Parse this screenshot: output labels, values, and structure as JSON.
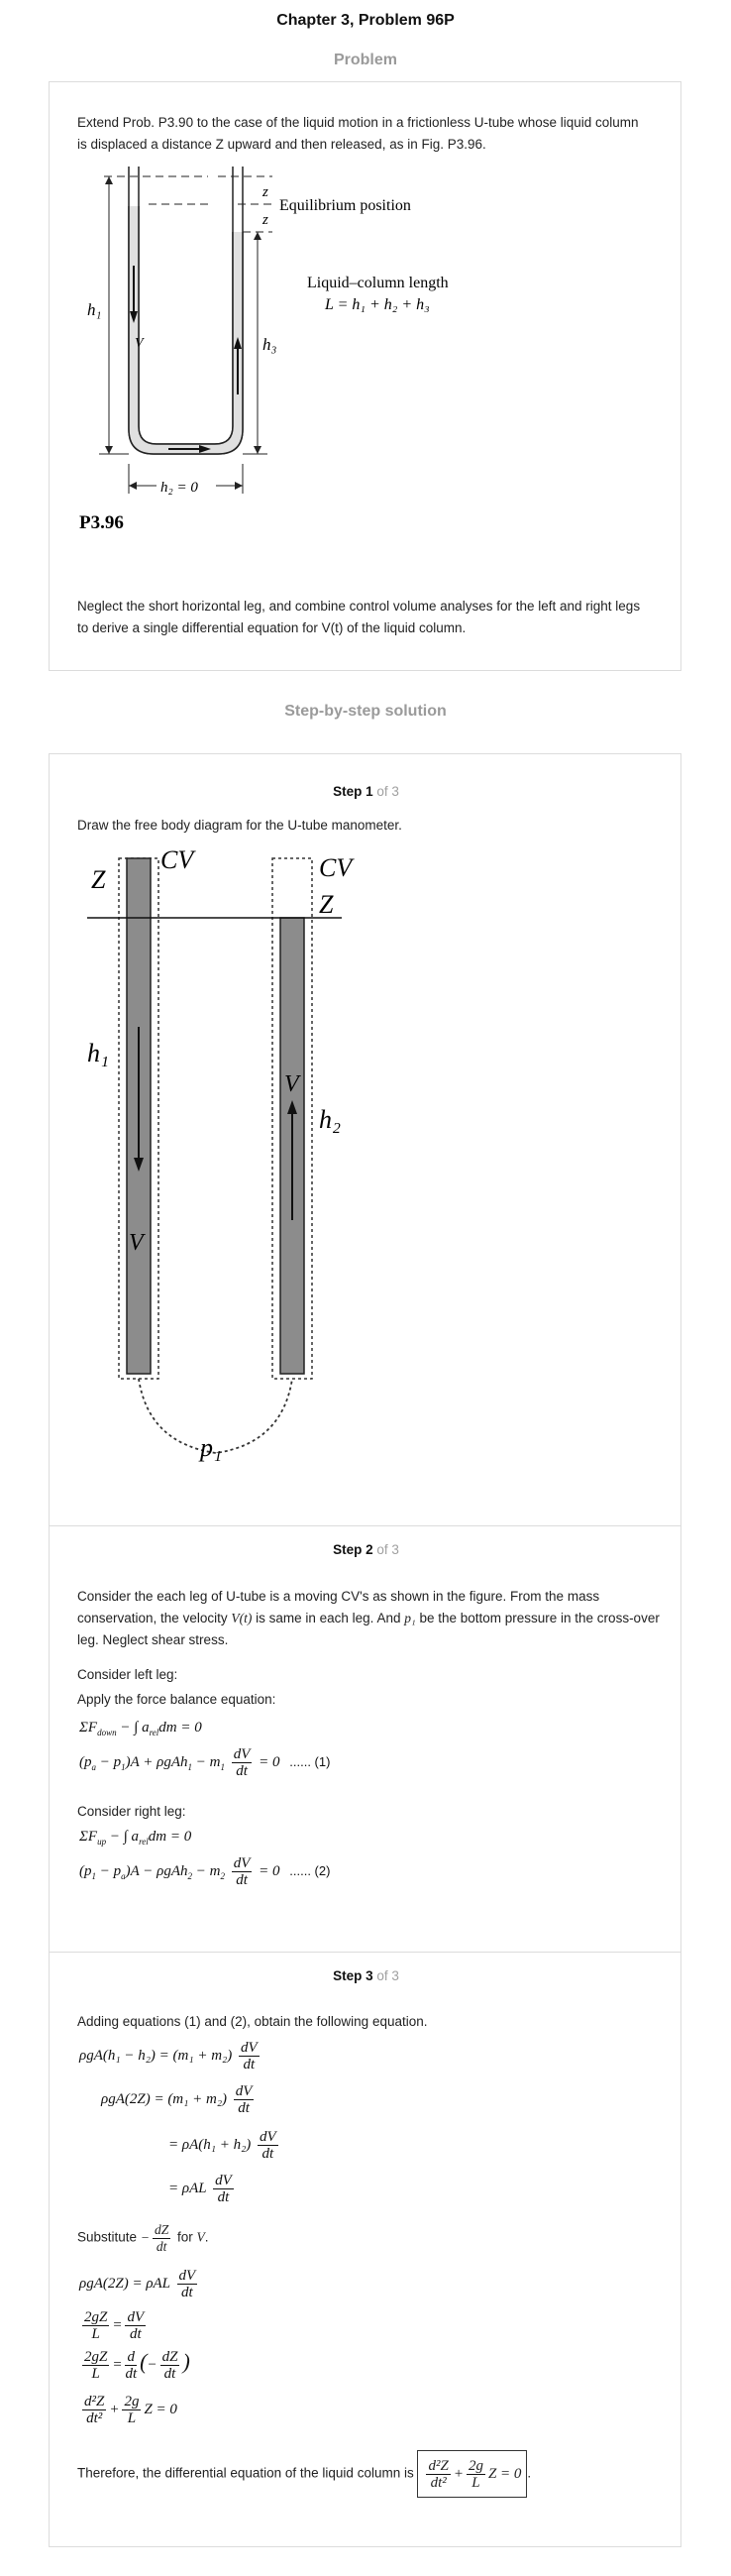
{
  "page": {
    "title": "Chapter 3, Problem 96P"
  },
  "problem": {
    "heading": "Problem",
    "intro": "Extend Prob. P3.90 to the case of the liquid motion in a frictionless U-tube whose liquid column is displaced a distance Z upward and then released, as in Fig. P3.96.",
    "figure": {
      "z_top": "z",
      "z_bottom": "z",
      "equilibrium": "Equilibrium position",
      "length_title": "Liquid–column length",
      "length_eq": "L = h₁ + h₂ + h₃",
      "h1": "h₁",
      "h3": "h₃",
      "v": "V",
      "h2": "h₂ = 0",
      "caption": "P3.96"
    },
    "outro": "Neglect the short horizontal leg, and combine control volume analyses for the left and right legs to derive a single differential equation for V(t) of the liquid column."
  },
  "solution": {
    "heading": "Step-by-step solution",
    "steps": [
      {
        "label": "Step 1",
        "of": "of 3"
      },
      {
        "label": "Step 2",
        "of": "of 3"
      },
      {
        "label": "Step 3",
        "of": "of 3"
      }
    ]
  },
  "step1": {
    "text": "Draw the free body diagram for the U-tube manometer.",
    "figure": {
      "z_left": "Z",
      "cv_left": "CV",
      "cv_right": "CV",
      "z_right": "Z",
      "h1": "h₁",
      "v_left": "V",
      "v_right": "V",
      "h2": "h₂",
      "p1": "p₁"
    }
  },
  "step2": {
    "text_a": "Consider the each leg of U-tube is a moving CV's as shown in the figure. From the mass conservation, the velocity",
    "text_v": "V(t)",
    "text_b": "is same in each leg. And",
    "text_p": "p₁",
    "text_c": "be the bottom pressure in the cross-over leg. Neglect shear stress.",
    "left_leg": "Consider left leg:",
    "apply": "Apply the force balance equation:",
    "eq_left_1": "ΣF",
    "eq_left_1_sub": "down",
    "eq_left_1_rest": " − ∫ a",
    "eq_left_1_sub2": "rel",
    "eq_left_1_tail": "dm = 0",
    "eq_left_2_head": "(p",
    "eq_left_2_a": "a",
    "eq_left_2_b": " − p",
    "eq_left_2_c": "1",
    "eq_left_2_d": ")A + ρgAh",
    "eq_left_2_e": "1",
    "eq_left_2_f": " − m",
    "eq_left_2_g": "1",
    "eq_left_2_dots": "= 0",
    "eq_no_1": "...... (1)",
    "right_leg": "Consider right leg:",
    "eq_right_1": "ΣF",
    "eq_right_1_sub": "up",
    "eq_right_1_rest": " − ∫ a",
    "eq_right_1_sub2": "rel",
    "eq_right_1_tail": "dm = 0",
    "eq_right_2_head": "(p",
    "eq_right_2_a": "1",
    "eq_right_2_b": " − p",
    "eq_right_2_c": "a",
    "eq_right_2_d": ")A − ρgAh",
    "eq_right_2_e": "2",
    "eq_right_2_f": " − m",
    "eq_right_2_g": "2",
    "eq_right_2_dots": "= 0",
    "eq_no_2": "...... (2)",
    "dv": "dV",
    "dt": "dt"
  },
  "step3": {
    "text": "Adding equations (1) and (2), obtain the following equation.",
    "eq1": "ρgA(h₁ − h₂) = (m₁ + m₂)",
    "eq2": "ρgA(2Z) = (m₁ + m₂)",
    "eq3": "= ρA(h₁ + h₂)",
    "eq4": "= ρAL",
    "subst_a": "Substitute",
    "subst_frac_num": "dZ",
    "subst_frac_den": "dt",
    "subst_b": "for",
    "subst_v": "V",
    "eq5": "ρgA(2Z) = ρAL",
    "eq6_num": "2gZ",
    "eq6_den": "L",
    "eq7_d": "d",
    "eq8_num": "d²Z",
    "eq8_den": "dt²",
    "eq8_mid_num": "2g",
    "eq8_mid_den": "L",
    "eq8_tail": "Z = 0",
    "therefore": "Therefore, the differential equation of the liquid column is",
    "dv": "dV",
    "dt": "dt",
    "dz": "dZ"
  }
}
